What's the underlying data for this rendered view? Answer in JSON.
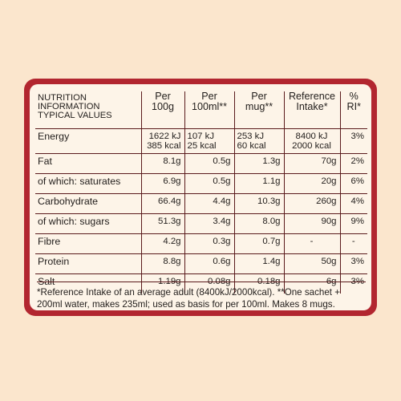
{
  "table": {
    "headers": [
      "NUTRITION INFORMATION TYPICAL VALUES",
      "Per 100g",
      "Per 100ml**",
      "Per mug**",
      "Reference Intake*",
      "% RI*"
    ],
    "rows": [
      {
        "label": "Energy",
        "per100g": "1622 kJ\n385 kcal",
        "per100ml": "107 kJ\n25 kcal",
        "permug": "253 kJ\n60 kcal",
        "ri": "8400 kJ\n2000 kcal",
        "pct": "3%"
      },
      {
        "label": "Fat",
        "per100g": "8.1g",
        "per100ml": "0.5g",
        "permug": "1.3g",
        "ri": "70g",
        "pct": "2%"
      },
      {
        "label": "of which: saturates",
        "per100g": "6.9g",
        "per100ml": "0.5g",
        "permug": "1.1g",
        "ri": "20g",
        "pct": "6%"
      },
      {
        "label": "Carbohydrate",
        "per100g": "66.4g",
        "per100ml": "4.4g",
        "permug": "10.3g",
        "ri": "260g",
        "pct": "4%"
      },
      {
        "label": "of which: sugars",
        "per100g": "51.3g",
        "per100ml": "3.4g",
        "permug": "8.0g",
        "ri": "90g",
        "pct": "9%"
      },
      {
        "label": "Fibre",
        "per100g": "4.2g",
        "per100ml": "0.3g",
        "permug": "0.7g",
        "ri": "-",
        "pct": "-"
      },
      {
        "label": "Protein",
        "per100g": "8.8g",
        "per100ml": "0.6g",
        "permug": "1.4g",
        "ri": "50g",
        "pct": "3%"
      },
      {
        "label": "Salt",
        "per100g": "1.19g",
        "per100ml": "0.08g",
        "permug": "0.18g",
        "ri": "6g",
        "pct": "3%"
      }
    ]
  },
  "footnote": "*Reference Intake of an average adult (8400kJ/2000kcal). **One sachet + 200ml water, makes 235ml; used as basis for per 100ml. Makes 8 mugs.",
  "colors": {
    "background": "#fbe6cd",
    "border": "#b2262f",
    "panel": "#fdf4e8",
    "text": "#221e1c"
  }
}
